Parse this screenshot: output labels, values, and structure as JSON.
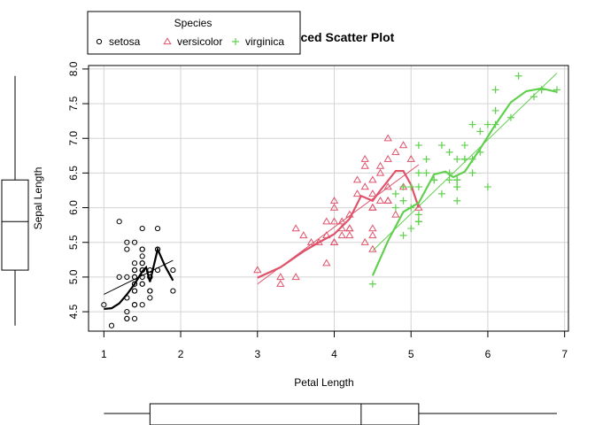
{
  "chart_data": {
    "type": "scatter",
    "title": "Enhanced Scatter Plot",
    "xlabel": "Petal Length",
    "ylabel": "Sepal Length",
    "xlim": [
      0.8,
      7.05
    ],
    "ylim": [
      4.22,
      8.05
    ],
    "xticks": [
      1,
      2,
      3,
      4,
      5,
      6,
      7
    ],
    "yticks": [
      4.5,
      5.0,
      5.5,
      6.0,
      6.5,
      7.0,
      7.5,
      8.0
    ],
    "grid": true,
    "legend": {
      "title": "Species",
      "placement": "top-left, above plot",
      "entries": [
        "setosa",
        "versicolor",
        "virginica"
      ]
    },
    "series": [
      {
        "name": "setosa",
        "color": "#000000",
        "marker": "circle",
        "points": [
          [
            1.4,
            5.1
          ],
          [
            1.4,
            4.9
          ],
          [
            1.3,
            4.7
          ],
          [
            1.5,
            4.6
          ],
          [
            1.4,
            5.0
          ],
          [
            1.7,
            5.4
          ],
          [
            1.4,
            4.6
          ],
          [
            1.5,
            5.0
          ],
          [
            1.4,
            4.4
          ],
          [
            1.5,
            4.9
          ],
          [
            1.5,
            5.4
          ],
          [
            1.6,
            4.8
          ],
          [
            1.4,
            4.8
          ],
          [
            1.1,
            4.3
          ],
          [
            1.2,
            5.8
          ],
          [
            1.5,
            5.7
          ],
          [
            1.3,
            5.4
          ],
          [
            1.4,
            5.1
          ],
          [
            1.7,
            5.7
          ],
          [
            1.5,
            5.1
          ],
          [
            1.7,
            5.4
          ],
          [
            1.5,
            5.1
          ],
          [
            1.0,
            4.6
          ],
          [
            1.7,
            5.1
          ],
          [
            1.9,
            4.8
          ],
          [
            1.6,
            5.0
          ],
          [
            1.6,
            5.0
          ],
          [
            1.5,
            5.2
          ],
          [
            1.4,
            5.2
          ],
          [
            1.6,
            4.7
          ],
          [
            1.6,
            4.8
          ],
          [
            1.5,
            5.4
          ],
          [
            1.5,
            5.2
          ],
          [
            1.4,
            5.5
          ],
          [
            1.5,
            4.9
          ],
          [
            1.2,
            5.0
          ],
          [
            1.3,
            5.5
          ],
          [
            1.4,
            4.9
          ],
          [
            1.3,
            4.4
          ],
          [
            1.5,
            5.1
          ],
          [
            1.3,
            5.0
          ],
          [
            1.3,
            4.5
          ],
          [
            1.3,
            4.4
          ],
          [
            1.6,
            5.0
          ],
          [
            1.9,
            5.1
          ],
          [
            1.4,
            4.8
          ],
          [
            1.6,
            5.1
          ],
          [
            1.4,
            4.6
          ],
          [
            1.5,
            5.3
          ],
          [
            1.4,
            5.0
          ]
        ],
        "fit": [
          [
            1.0,
            4.75
          ],
          [
            1.9,
            5.24
          ]
        ],
        "smooth": [
          [
            1.0,
            4.54
          ],
          [
            1.1,
            4.55
          ],
          [
            1.2,
            4.62
          ],
          [
            1.3,
            4.75
          ],
          [
            1.4,
            4.9
          ],
          [
            1.5,
            5.08
          ],
          [
            1.55,
            5.14
          ],
          [
            1.6,
            4.93
          ],
          [
            1.7,
            5.4
          ],
          [
            1.8,
            5.15
          ],
          [
            1.9,
            4.95
          ]
        ]
      },
      {
        "name": "versicolor",
        "color": "#df536b",
        "marker": "triangle",
        "points": [
          [
            4.7,
            7.0
          ],
          [
            4.5,
            6.4
          ],
          [
            4.9,
            6.9
          ],
          [
            4.0,
            5.5
          ],
          [
            4.6,
            6.5
          ],
          [
            4.5,
            5.7
          ],
          [
            4.7,
            6.3
          ],
          [
            3.3,
            4.9
          ],
          [
            4.6,
            6.6
          ],
          [
            3.9,
            5.2
          ],
          [
            3.5,
            5.0
          ],
          [
            4.2,
            5.9
          ],
          [
            4.0,
            6.0
          ],
          [
            4.7,
            6.1
          ],
          [
            3.6,
            5.6
          ],
          [
            4.4,
            6.7
          ],
          [
            4.5,
            5.6
          ],
          [
            4.1,
            5.8
          ],
          [
            4.5,
            6.2
          ],
          [
            3.9,
            5.6
          ],
          [
            4.8,
            5.9
          ],
          [
            4.0,
            6.1
          ],
          [
            4.9,
            6.3
          ],
          [
            4.7,
            6.1
          ],
          [
            4.3,
            6.4
          ],
          [
            4.4,
            6.6
          ],
          [
            4.8,
            6.8
          ],
          [
            5.0,
            6.7
          ],
          [
            4.5,
            6.0
          ],
          [
            3.5,
            5.7
          ],
          [
            3.8,
            5.5
          ],
          [
            3.7,
            5.5
          ],
          [
            3.9,
            5.8
          ],
          [
            5.1,
            6.0
          ],
          [
            4.5,
            5.4
          ],
          [
            4.5,
            6.0
          ],
          [
            4.7,
            6.7
          ],
          [
            4.4,
            6.3
          ],
          [
            4.1,
            5.6
          ],
          [
            4.0,
            5.5
          ],
          [
            4.4,
            5.5
          ],
          [
            4.6,
            6.1
          ],
          [
            4.0,
            5.8
          ],
          [
            3.3,
            5.0
          ],
          [
            4.2,
            5.6
          ],
          [
            4.2,
            5.7
          ],
          [
            4.2,
            5.7
          ],
          [
            4.3,
            6.2
          ],
          [
            3.0,
            5.1
          ],
          [
            4.1,
            5.7
          ]
        ],
        "fit": [
          [
            3.0,
            4.9
          ],
          [
            5.1,
            6.62
          ]
        ],
        "smooth": [
          [
            3.0,
            4.99
          ],
          [
            3.3,
            5.14
          ],
          [
            3.6,
            5.37
          ],
          [
            3.8,
            5.5
          ],
          [
            4.0,
            5.62
          ],
          [
            4.2,
            5.84
          ],
          [
            4.35,
            6.17
          ],
          [
            4.5,
            6.1
          ],
          [
            4.6,
            6.25
          ],
          [
            4.8,
            6.53
          ],
          [
            4.9,
            6.53
          ],
          [
            5.0,
            6.33
          ],
          [
            5.1,
            6.0
          ]
        ]
      },
      {
        "name": "virginica",
        "color": "#61d04f",
        "marker": "plus",
        "points": [
          [
            6.0,
            6.3
          ],
          [
            5.1,
            5.8
          ],
          [
            5.9,
            7.1
          ],
          [
            5.6,
            6.3
          ],
          [
            5.8,
            6.5
          ],
          [
            6.6,
            7.6
          ],
          [
            4.5,
            4.9
          ],
          [
            6.3,
            7.3
          ],
          [
            5.8,
            6.7
          ],
          [
            6.1,
            7.2
          ],
          [
            5.1,
            6.5
          ],
          [
            5.3,
            6.4
          ],
          [
            5.5,
            6.8
          ],
          [
            5.0,
            5.7
          ],
          [
            5.1,
            5.8
          ],
          [
            5.3,
            6.4
          ],
          [
            5.5,
            6.5
          ],
          [
            6.7,
            7.7
          ],
          [
            6.9,
            7.7
          ],
          [
            5.0,
            6.0
          ],
          [
            5.7,
            6.9
          ],
          [
            4.9,
            5.6
          ],
          [
            6.7,
            7.7
          ],
          [
            4.9,
            6.3
          ],
          [
            5.7,
            6.7
          ],
          [
            6.0,
            7.2
          ],
          [
            4.8,
            6.2
          ],
          [
            4.9,
            6.1
          ],
          [
            5.6,
            6.4
          ],
          [
            5.8,
            7.2
          ],
          [
            6.1,
            7.4
          ],
          [
            6.4,
            7.9
          ],
          [
            5.6,
            6.4
          ],
          [
            5.1,
            6.3
          ],
          [
            5.6,
            6.1
          ],
          [
            6.1,
            7.7
          ],
          [
            5.6,
            6.3
          ],
          [
            5.5,
            6.4
          ],
          [
            4.8,
            6.0
          ],
          [
            5.4,
            6.9
          ],
          [
            5.6,
            6.7
          ],
          [
            5.1,
            6.9
          ],
          [
            5.1,
            5.8
          ],
          [
            5.9,
            6.8
          ],
          [
            5.7,
            6.7
          ],
          [
            5.2,
            6.7
          ],
          [
            5.0,
            6.3
          ],
          [
            5.2,
            6.5
          ],
          [
            5.4,
            6.2
          ],
          [
            5.1,
            5.9
          ]
        ],
        "fit": [
          [
            4.5,
            5.38
          ],
          [
            6.9,
            7.94
          ]
        ],
        "smooth": [
          [
            4.5,
            5.02
          ],
          [
            4.7,
            5.52
          ],
          [
            4.9,
            5.94
          ],
          [
            5.1,
            6.07
          ],
          [
            5.3,
            6.48
          ],
          [
            5.45,
            6.52
          ],
          [
            5.55,
            6.44
          ],
          [
            5.7,
            6.52
          ],
          [
            5.9,
            6.85
          ],
          [
            6.1,
            7.2
          ],
          [
            6.3,
            7.52
          ],
          [
            6.5,
            7.68
          ],
          [
            6.7,
            7.72
          ],
          [
            6.9,
            7.67
          ]
        ]
      }
    ]
  }
}
